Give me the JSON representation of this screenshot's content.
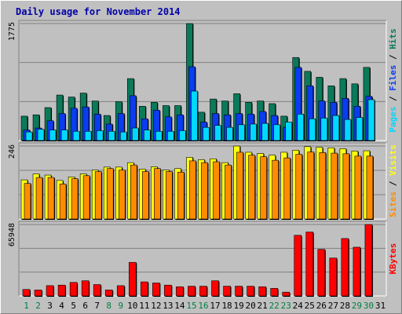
{
  "title": "Daily usage for November 2014",
  "colors": {
    "hits": "#0a7a5a",
    "files": "#0a3cf0",
    "pages": "#00d8ff",
    "visits": "#ffff10",
    "sites": "#ff8c00",
    "kbytes": "#ff0000",
    "weekend_label": "#008040",
    "weekday_label": "#000000"
  },
  "chart_data": [
    {
      "type": "bar",
      "name": "hits-files-pages",
      "categories": [
        "1",
        "2",
        "3",
        "4",
        "5",
        "6",
        "7",
        "8",
        "9",
        "10",
        "11",
        "12",
        "13",
        "14",
        "15",
        "16",
        "17",
        "18",
        "19",
        "20",
        "21",
        "22",
        "23",
        "24",
        "25",
        "26",
        "27",
        "28",
        "29",
        "30",
        "31"
      ],
      "ymax_label": "1775",
      "ylim": [
        0,
        1775
      ],
      "series": [
        {
          "name": "Hits",
          "values": [
            370,
            390,
            500,
            690,
            660,
            720,
            600,
            380,
            590,
            940,
            520,
            580,
            530,
            530,
            1775,
            430,
            630,
            600,
            710,
            580,
            600,
            560,
            370,
            1260,
            1050,
            960,
            830,
            940,
            860,
            1110,
            0
          ]
        },
        {
          "name": "Files",
          "values": [
            160,
            190,
            300,
            410,
            490,
            510,
            400,
            250,
            410,
            680,
            330,
            460,
            360,
            390,
            1120,
            280,
            410,
            390,
            410,
            400,
            440,
            380,
            200,
            1110,
            830,
            600,
            580,
            640,
            520,
            670,
            0
          ]
        },
        {
          "name": "Pages",
          "values": [
            130,
            170,
            160,
            160,
            140,
            140,
            150,
            140,
            130,
            190,
            160,
            140,
            140,
            150,
            750,
            200,
            230,
            200,
            240,
            250,
            260,
            240,
            280,
            400,
            330,
            340,
            380,
            320,
            350,
            620,
            0
          ]
        }
      ],
      "legend": [
        "Pages",
        "Files",
        "Hits"
      ],
      "legend_separator": " / "
    },
    {
      "type": "bar",
      "name": "visits-sites",
      "categories": [
        "1",
        "2",
        "3",
        "4",
        "5",
        "6",
        "7",
        "8",
        "9",
        "10",
        "11",
        "12",
        "13",
        "14",
        "15",
        "16",
        "17",
        "18",
        "19",
        "20",
        "21",
        "22",
        "23",
        "24",
        "25",
        "26",
        "27",
        "28",
        "29",
        "30",
        "31"
      ],
      "ymax_label": "246",
      "ylim": [
        0,
        246
      ],
      "series": [
        {
          "name": "Visits",
          "values": [
            132,
            152,
            148,
            130,
            142,
            152,
            165,
            175,
            175,
            190,
            168,
            176,
            165,
            170,
            208,
            200,
            203,
            190,
            246,
            225,
            221,
            215,
            225,
            232,
            244,
            242,
            240,
            237,
            229,
            230,
            0
          ]
        },
        {
          "name": "Sites",
          "values": [
            120,
            140,
            140,
            118,
            136,
            146,
            160,
            170,
            165,
            182,
            160,
            170,
            160,
            158,
            196,
            190,
            193,
            182,
            225,
            215,
            210,
            198,
            206,
            218,
            226,
            224,
            222,
            220,
            212,
            212,
            0
          ]
        }
      ],
      "legend": [
        "Sites",
        "Visits"
      ],
      "legend_separator": " / "
    },
    {
      "type": "bar",
      "name": "kbytes",
      "categories": [
        "1",
        "2",
        "3",
        "4",
        "5",
        "6",
        "7",
        "8",
        "9",
        "10",
        "11",
        "12",
        "13",
        "14",
        "15",
        "16",
        "17",
        "18",
        "19",
        "20",
        "21",
        "22",
        "23",
        "24",
        "25",
        "26",
        "27",
        "28",
        "29",
        "30",
        "31"
      ],
      "ymax_label": "65948",
      "ylim": [
        0,
        65948
      ],
      "series": [
        {
          "name": "KBytes",
          "values": [
            6000,
            5500,
            9500,
            10000,
            12500,
            14000,
            10500,
            5500,
            9500,
            31000,
            13000,
            12000,
            10000,
            8500,
            9000,
            9000,
            14000,
            9000,
            9000,
            9000,
            8500,
            7000,
            3500,
            56000,
            59000,
            43000,
            35000,
            53000,
            45000,
            65948,
            0
          ]
        }
      ],
      "legend": [
        "KBytes"
      ],
      "legend_separator": ""
    }
  ],
  "x_labels": {
    "values": [
      "1",
      "2",
      "3",
      "4",
      "5",
      "6",
      "7",
      "8",
      "9",
      "10",
      "11",
      "12",
      "13",
      "14",
      "15",
      "16",
      "17",
      "18",
      "19",
      "20",
      "21",
      "22",
      "23",
      "24",
      "25",
      "26",
      "27",
      "28",
      "29",
      "30",
      "31"
    ],
    "weekend_days": [
      "1",
      "2",
      "8",
      "9",
      "15",
      "16",
      "22",
      "23",
      "29",
      "30"
    ]
  }
}
